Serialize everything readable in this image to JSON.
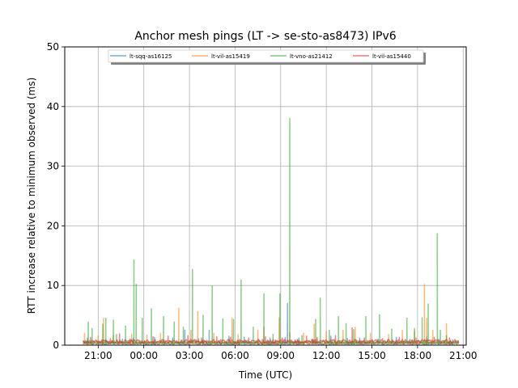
{
  "chart_data": {
    "type": "line",
    "title": "Anchor mesh pings (LT -> se-sto-as8473) IPv6",
    "xlabel": "Time (UTC)",
    "ylabel": "RTT increase relative to minimum observed (ms)",
    "ylim": [
      0,
      50
    ],
    "yticks": [
      0,
      10,
      20,
      30,
      40,
      50
    ],
    "xlim_hours": [
      18.8,
      45.2
    ],
    "xticks": [
      {
        "h": 21,
        "label": "21:00"
      },
      {
        "h": 24,
        "label": "00:00"
      },
      {
        "h": 27,
        "label": "03:00"
      },
      {
        "h": 30,
        "label": "06:00"
      },
      {
        "h": 33,
        "label": "09:00"
      },
      {
        "h": 36,
        "label": "12:00"
      },
      {
        "h": 39,
        "label": "15:00"
      },
      {
        "h": 42,
        "label": "18:00"
      },
      {
        "h": 45,
        "label": "21:00"
      }
    ],
    "grid": true,
    "legend_position": "top-center",
    "series": [
      {
        "name": "lt-sqq-as16125",
        "color": "#1f77b4",
        "baseline": 0.3,
        "spikes": [
          [
            20.3,
            1.2
          ],
          [
            21.5,
            0.9
          ],
          [
            22.6,
            1.0
          ],
          [
            23.3,
            1.1
          ],
          [
            24.7,
            1.3
          ],
          [
            25.9,
            1.2
          ],
          [
            26.7,
            2.5
          ],
          [
            27.6,
            1.1
          ],
          [
            28.3,
            2.5
          ],
          [
            29.6,
            1.5
          ],
          [
            30.6,
            1.3
          ],
          [
            31.5,
            1.0
          ],
          [
            32.3,
            1.2
          ],
          [
            33.3,
            1.3
          ],
          [
            33.45,
            7.0
          ],
          [
            34.2,
            1.2
          ],
          [
            35.1,
            1.0
          ],
          [
            36.3,
            1.5
          ],
          [
            37.4,
            1.1
          ],
          [
            38.2,
            1.2
          ],
          [
            39.4,
            1.0
          ],
          [
            40.6,
            1.3
          ],
          [
            41.5,
            1.0
          ],
          [
            42.6,
            1.4
          ],
          [
            43.4,
            1.0
          ],
          [
            44.3,
            0.9
          ]
        ]
      },
      {
        "name": "lt-vil-as15419",
        "color": "#ff7f0e",
        "baseline": 0.4,
        "spikes": [
          [
            20.1,
            2.0
          ],
          [
            21.0,
            1.5
          ],
          [
            21.35,
            4.5
          ],
          [
            22.0,
            1.6
          ],
          [
            23.2,
            1.8
          ],
          [
            24.2,
            1.7
          ],
          [
            25.1,
            2.0
          ],
          [
            26.3,
            6.2
          ],
          [
            27.1,
            2.5
          ],
          [
            27.55,
            5.6
          ],
          [
            28.6,
            2.0
          ],
          [
            29.8,
            4.5
          ],
          [
            30.2,
            1.8
          ],
          [
            31.5,
            2.5
          ],
          [
            31.9,
            3.0
          ],
          [
            32.9,
            4.6
          ],
          [
            33.6,
            2.1
          ],
          [
            34.5,
            2.0
          ],
          [
            35.2,
            3.5
          ],
          [
            36.0,
            2.3
          ],
          [
            37.1,
            2.5
          ],
          [
            37.9,
            3.0
          ],
          [
            38.9,
            2.0
          ],
          [
            40.1,
            1.8
          ],
          [
            41.0,
            2.5
          ],
          [
            41.8,
            2.3
          ],
          [
            42.45,
            10.2
          ],
          [
            42.6,
            4.5
          ],
          [
            43.0,
            2.5
          ],
          [
            43.9,
            3.6
          ]
        ]
      },
      {
        "name": "lt-vno-as21412",
        "color": "#2ca02c",
        "baseline": 0.5,
        "spikes": [
          [
            20.35,
            3.9
          ],
          [
            20.6,
            2.8
          ],
          [
            21.3,
            3.5
          ],
          [
            21.5,
            4.5
          ],
          [
            22.0,
            4.2
          ],
          [
            22.2,
            1.8
          ],
          [
            22.8,
            3.2
          ],
          [
            23.35,
            14.3
          ],
          [
            23.5,
            10.2
          ],
          [
            23.9,
            4.5
          ],
          [
            24.5,
            6.1
          ],
          [
            25.3,
            4.8
          ],
          [
            26.0,
            3.9
          ],
          [
            26.6,
            3.0
          ],
          [
            27.2,
            12.7
          ],
          [
            27.9,
            5.0
          ],
          [
            28.5,
            9.9
          ],
          [
            29.2,
            4.4
          ],
          [
            29.9,
            4.3
          ],
          [
            30.4,
            10.9
          ],
          [
            31.2,
            3.0
          ],
          [
            31.9,
            8.6
          ],
          [
            32.5,
            1.8
          ],
          [
            32.95,
            8.6
          ],
          [
            33.6,
            38.0
          ],
          [
            34.4,
            1.6
          ],
          [
            35.3,
            4.3
          ],
          [
            35.6,
            7.9
          ],
          [
            36.2,
            2.5
          ],
          [
            36.8,
            4.8
          ],
          [
            37.3,
            3.6
          ],
          [
            37.8,
            2.6
          ],
          [
            38.6,
            4.8
          ],
          [
            39.5,
            5.1
          ],
          [
            40.3,
            2.7
          ],
          [
            41.3,
            4.5
          ],
          [
            41.8,
            2.8
          ],
          [
            42.3,
            4.6
          ],
          [
            42.7,
            6.9
          ],
          [
            43.3,
            18.7
          ],
          [
            43.5,
            2.5
          ],
          [
            43.9,
            1.6
          ]
        ]
      },
      {
        "name": "lt-vil-as15440",
        "color": "#d62728",
        "baseline": 0.6,
        "spikes": [
          [
            20.5,
            1.3
          ],
          [
            21.8,
            1.1
          ],
          [
            22.4,
            1.9
          ],
          [
            23.1,
            1.0
          ],
          [
            24.6,
            1.4
          ],
          [
            25.6,
            1.5
          ],
          [
            26.9,
            1.6
          ],
          [
            27.8,
            1.2
          ],
          [
            28.8,
            1.4
          ],
          [
            29.7,
            1.3
          ],
          [
            30.9,
            1.2
          ],
          [
            32.0,
            1.4
          ],
          [
            33.1,
            1.2
          ],
          [
            34.7,
            1.5
          ],
          [
            35.4,
            1.3
          ],
          [
            36.6,
            1.6
          ],
          [
            37.7,
            2.9
          ],
          [
            38.5,
            1.2
          ],
          [
            39.7,
            1.1
          ],
          [
            40.8,
            1.3
          ],
          [
            41.9,
            1.2
          ],
          [
            43.1,
            1.3
          ],
          [
            44.1,
            1.2
          ]
        ]
      }
    ]
  }
}
